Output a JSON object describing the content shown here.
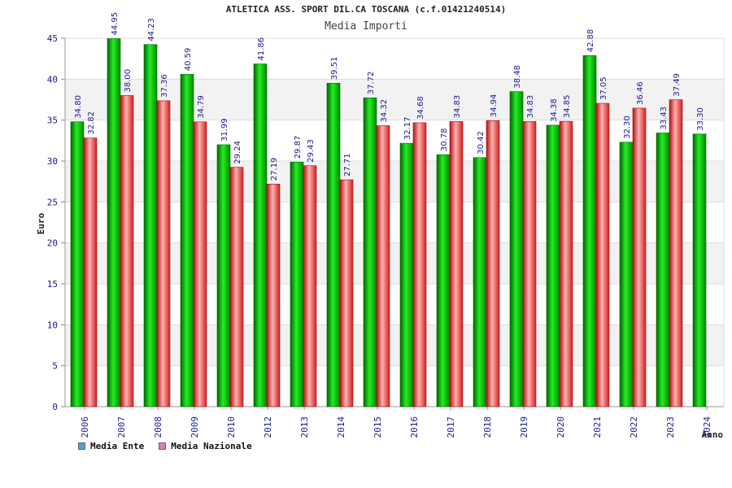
{
  "colors": {
    "ente": "#00b400",
    "nazionale": "#e63232",
    "legend_ente": "#5b9bd5",
    "legend_nazionale": "#d87fb1",
    "axis_text": "#1a1a8c",
    "band": "#f2f2f2"
  },
  "chart_data": {
    "type": "bar",
    "title": "ATLETICA ASS. SPORT DIL.CA TOSCANA (c.f.01421240514)",
    "subtitle": "Media Importi",
    "xlabel": "Anno",
    "ylabel": "Euro",
    "ylim": [
      0,
      45
    ],
    "yticks": [
      0,
      5,
      10,
      15,
      20,
      25,
      30,
      35,
      40,
      45
    ],
    "grid": true,
    "legend_position": "bottom-left",
    "categories": [
      "2006",
      "2007",
      "2008",
      "2009",
      "2010",
      "2012",
      "2013",
      "2014",
      "2015",
      "2016",
      "2017",
      "2018",
      "2019",
      "2020",
      "2021",
      "2022",
      "2023",
      "2024"
    ],
    "series": [
      {
        "name": "Media Ente",
        "values": [
          34.8,
          44.95,
          44.23,
          40.59,
          31.99,
          41.86,
          29.87,
          39.51,
          37.72,
          32.17,
          30.78,
          30.42,
          38.48,
          34.38,
          42.88,
          32.3,
          33.43,
          33.3
        ],
        "labels": [
          "34.80",
          "44.95",
          "44.23",
          "40.59",
          "31.99",
          "41.86",
          "29.87",
          "39.51",
          "37.72",
          "32.17",
          "30.78",
          "30.42",
          "38.48",
          "34.38",
          "42.88",
          "32.30",
          "33.43",
          "33.30"
        ]
      },
      {
        "name": "Media Nazionale",
        "values": [
          32.82,
          38.0,
          37.36,
          34.79,
          29.24,
          27.19,
          29.43,
          27.71,
          34.32,
          34.68,
          34.83,
          34.94,
          34.83,
          34.85,
          37.05,
          36.46,
          37.49,
          null
        ],
        "labels": [
          "32.82",
          "38.00",
          "37.36",
          "34.79",
          "29.24",
          "27.19",
          "29.43",
          "27.71",
          "34.32",
          "34.68",
          "34.83",
          "34.94",
          "34.83",
          "34.85",
          "37.05",
          "36.46",
          "37.49",
          null
        ]
      }
    ]
  }
}
